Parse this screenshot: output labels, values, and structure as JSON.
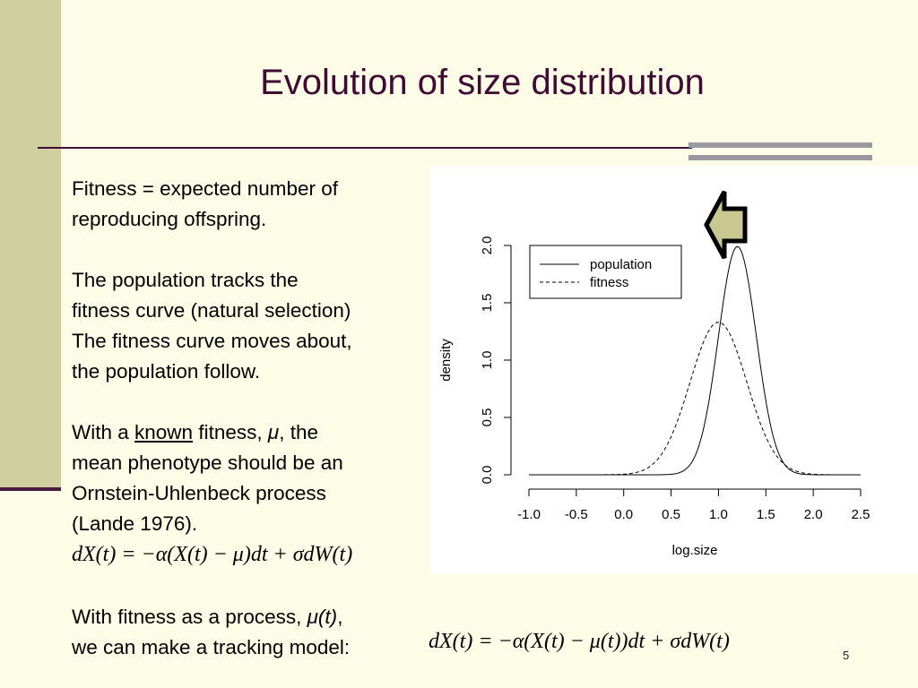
{
  "slide": {
    "title": "Evolution of size distribution",
    "page_number": "5"
  },
  "text": {
    "p1_line1": "Fitness = expected number of",
    "p1_line2": "reproducing offspring.",
    "p2_line1": "The population tracks the",
    "p2_line2": "fitness curve (natural selection)",
    "p2_line3": "The fitness curve moves about,",
    "p2_line4": "the population follow.",
    "p3_line1_a": "With a ",
    "p3_line1_known": "known",
    "p3_line1_b": " fitness, ",
    "p3_line1_mu": "μ",
    "p3_line1_c": ", the",
    "p3_line2": "mean phenotype should be an",
    "p3_line3": "Ornstein-Uhlenbeck process",
    "p3_line4": "(Lande 1976).",
    "p4_line1_a": "With fitness as a process, ",
    "p4_line1_mu": "μ(t)",
    "p4_line1_b": ",",
    "p4_line2": "we can make a tracking model:"
  },
  "formulas": {
    "ou": "dX(t) = −α(X(t) − μ)dt + σdW(t)",
    "tracking": "dX(t) = −α(X(t) − μ(t))dt + σdW(t)"
  },
  "colors": {
    "background": "#fdfce6",
    "band": "#cfcf9f",
    "title": "#3f0a33",
    "arrow_fill": "#c8c890"
  },
  "icons": {
    "arrow": "left-arrow-icon"
  },
  "chart_data": {
    "type": "line",
    "xlabel": "log.size",
    "ylabel": "density",
    "xlim": [
      -1.0,
      2.5
    ],
    "ylim": [
      0.0,
      2.0
    ],
    "xticks": [
      "-1.0",
      "-0.5",
      "0.0",
      "0.5",
      "1.0",
      "1.5",
      "2.0",
      "2.5"
    ],
    "yticks": [
      "0.0",
      "0.5",
      "1.0",
      "1.5",
      "2.0"
    ],
    "legend_position": "top-left",
    "grid": false,
    "series": [
      {
        "name": "population",
        "style": "solid",
        "mean": 1.2,
        "sd": 0.2,
        "peak": 1.99
      },
      {
        "name": "fitness",
        "style": "dashed",
        "mean": 1.0,
        "sd": 0.3,
        "peak": 1.33
      }
    ]
  }
}
